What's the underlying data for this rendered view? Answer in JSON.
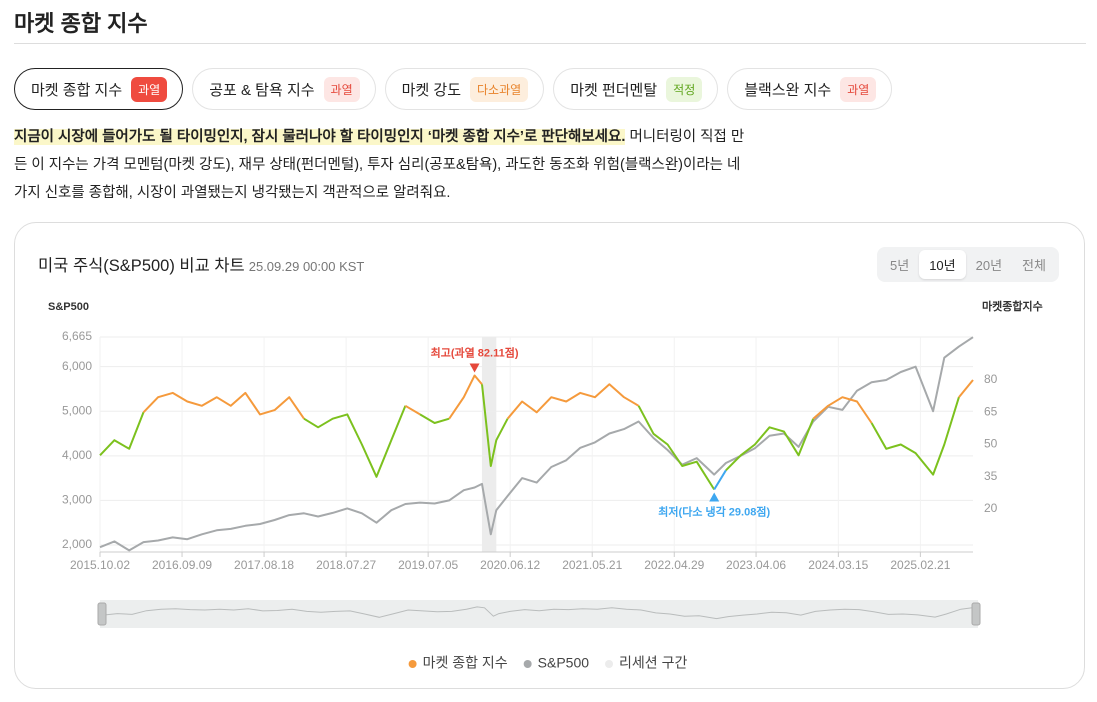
{
  "header": {
    "title": "마켓 종합 지수"
  },
  "tabs": [
    {
      "label": "마켓 종합 지수",
      "badge": "과열",
      "badge_bg": "#ef4b3f",
      "badge_fg": "#ffffff",
      "active": true
    },
    {
      "label": "공포 & 탐욕 지수",
      "badge": "과열",
      "badge_bg": "#fde6e4",
      "badge_fg": "#e5483b"
    },
    {
      "label": "마켓 강도",
      "badge": "다소과열",
      "badge_bg": "#fdeedd",
      "badge_fg": "#e8832a"
    },
    {
      "label": "마켓 펀더멘탈",
      "badge": "적정",
      "badge_bg": "#eaf6dc",
      "badge_fg": "#5fa51c"
    },
    {
      "label": "블랙스완 지수",
      "badge": "과열",
      "badge_bg": "#fde6e4",
      "badge_fg": "#e5483b"
    }
  ],
  "description": {
    "highlight": "지금이 시장에 들어가도 될 타이밍인지, 잠시 물러나야 할 타이밍인지 ‘마켓 종합 지수’로 판단해보세요.",
    "text": "머니터링이 직접 만든 이 지수는 가격 모멘텀(마켓 강도), 재무 상태(펀더멘털), 투자 심리(공포&탐욕), 과도한 동조화 위험(블랙스완)이라는 네 가지 신호를 종합해, 시장이 과열됐는지 냉각됐는지 객관적으로 알려줘요."
  },
  "card": {
    "title": "미국 주식(S&P500) 비교 차트",
    "timestamp": "25.09.29 00:00 KST",
    "ranges": [
      {
        "label": "5년"
      },
      {
        "label": "10년",
        "active": true
      },
      {
        "label": "20년"
      },
      {
        "label": "전체"
      }
    ]
  },
  "chart_data": {
    "type": "line",
    "y_label": "S&P500",
    "y2_label": "마켓종합지수",
    "x": [
      "2015.10.02",
      "2015.12.01",
      "2016.02.01",
      "2016.04.01",
      "2016.06.01",
      "2016.08.01",
      "2016.10.01",
      "2016.12.01",
      "2017.02.01",
      "2017.04.01",
      "2017.06.01",
      "2017.08.01",
      "2017.10.01",
      "2017.12.01",
      "2018.02.01",
      "2018.04.01",
      "2018.06.01",
      "2018.08.01",
      "2018.10.01",
      "2018.12.01",
      "2019.02.01",
      "2019.04.01",
      "2019.06.01",
      "2019.08.01",
      "2019.10.01",
      "2019.12.01",
      "2020.01.15",
      "2020.02.15",
      "2020.03.23",
      "2020.04.15",
      "2020.06.01",
      "2020.08.01",
      "2020.10.01",
      "2020.12.01",
      "2021.02.01",
      "2021.04.01",
      "2021.06.01",
      "2021.08.01",
      "2021.10.01",
      "2021.12.01",
      "2022.02.01",
      "2022.04.01",
      "2022.06.01",
      "2022.08.01",
      "2022.10.13",
      "2022.12.01",
      "2023.02.01",
      "2023.04.01",
      "2023.06.01",
      "2023.08.01",
      "2023.10.01",
      "2023.12.01",
      "2024.02.01",
      "2024.04.01",
      "2024.06.01",
      "2024.08.01",
      "2024.10.01",
      "2024.12.01",
      "2025.02.01",
      "2025.04.15",
      "2025.06.01",
      "2025.08.01",
      "2025.09.29"
    ],
    "series": [
      {
        "name": "마켓 종합 지수",
        "color": "#f59a3c",
        "axis": "y2",
        "zones": [
          {
            "below": 35,
            "color": "#3ea7f0"
          },
          {
            "below": 65,
            "color": "#7cc11e"
          }
        ],
        "values": [
          45,
          52,
          48,
          65,
          72,
          74,
          70,
          68,
          72,
          68,
          74,
          64,
          66,
          72,
          62,
          58,
          62,
          64,
          50,
          35,
          52,
          68,
          64,
          60,
          62,
          72,
          82.11,
          78,
          40,
          52,
          62,
          70,
          65,
          72,
          70,
          74,
          72,
          78,
          72,
          68,
          55,
          50,
          40,
          42,
          29.08,
          38,
          45,
          50,
          58,
          56,
          45,
          62,
          68,
          72,
          70,
          60,
          48,
          50,
          46,
          36,
          50,
          72,
          80
        ]
      },
      {
        "name": "S&P500",
        "color": "#a6a9ab",
        "values": [
          1950,
          2080,
          1880,
          2065,
          2100,
          2170,
          2130,
          2240,
          2330,
          2360,
          2430,
          2470,
          2560,
          2670,
          2710,
          2640,
          2720,
          2820,
          2710,
          2500,
          2780,
          2920,
          2950,
          2930,
          3000,
          3230,
          3290,
          3370,
          2240,
          2780,
          3100,
          3500,
          3400,
          3750,
          3900,
          4180,
          4300,
          4500,
          4600,
          4770,
          4400,
          4130,
          3800,
          3950,
          3580,
          3840,
          4000,
          4170,
          4450,
          4500,
          4200,
          4770,
          5100,
          5030,
          5460,
          5650,
          5700,
          5880,
          6000,
          5000,
          6200,
          6450,
          6660
        ]
      }
    ],
    "recession": {
      "name": "리세션 구간",
      "color": "#ececec",
      "x": [
        "2020.02.15",
        "2020.04.15"
      ]
    },
    "annotations": [
      {
        "text": "최고(과열 82.11점)",
        "x": "2020.01.15",
        "color": "#e5483b",
        "position": "above"
      },
      {
        "text": "최저(다소 냉각 29.08점)",
        "x": "2022.10.13",
        "color": "#3ea7f0",
        "position": "below"
      }
    ],
    "xlim": [
      "2015.10.02",
      "2025.09.29"
    ],
    "xticks": [
      "2015.10.02",
      "2016.09.09",
      "2017.08.18",
      "2018.07.27",
      "2019.07.05",
      "2020.06.12",
      "2021.05.21",
      "2022.04.29",
      "2023.04.06",
      "2024.03.15",
      "2025.02.21"
    ],
    "ylim": [
      1843,
      6665
    ],
    "yticks": [
      {
        "value": 2000,
        "label": "2,000"
      },
      {
        "value": 3000,
        "label": "3,000"
      },
      {
        "value": 4000,
        "label": "4,000"
      },
      {
        "value": 5000,
        "label": "5,000"
      },
      {
        "value": 6000,
        "label": "6,000"
      },
      {
        "value": 6665,
        "label": "6,665"
      }
    ],
    "y2lim": [
      0,
      100
    ],
    "y2ticks": [
      20,
      35,
      50,
      65,
      80
    ],
    "grid": true,
    "legend": "bottom",
    "navigator": true
  }
}
